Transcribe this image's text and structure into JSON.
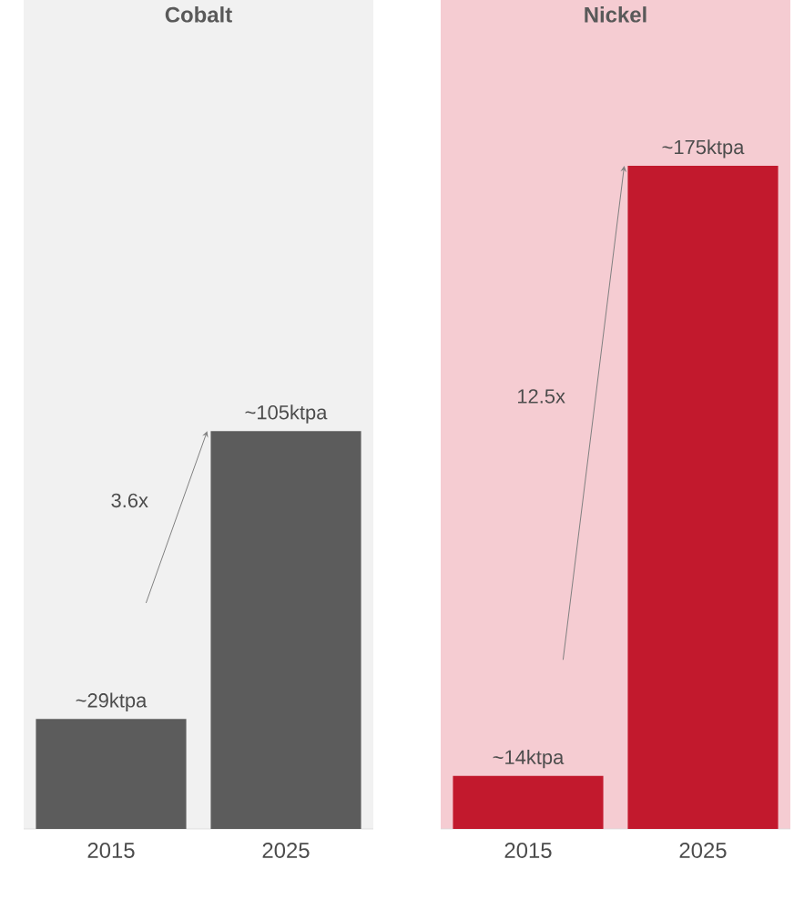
{
  "chart_data": [
    {
      "type": "bar",
      "title": "Cobalt",
      "categories": [
        "2015",
        "2025"
      ],
      "values": [
        29,
        105
      ],
      "value_labels": [
        "~29ktpa",
        "~105ktpa"
      ],
      "color": "#5c5c5c",
      "annotations": [
        "3.6x"
      ]
    },
    {
      "type": "bar",
      "title": "Nickel",
      "categories": [
        "2015",
        "2025"
      ],
      "values": [
        14,
        175
      ],
      "value_labels": [
        "~14ktpa",
        "~175ktpa"
      ],
      "color": "#c2192d",
      "annotations": [
        "12.5x"
      ]
    }
  ]
}
